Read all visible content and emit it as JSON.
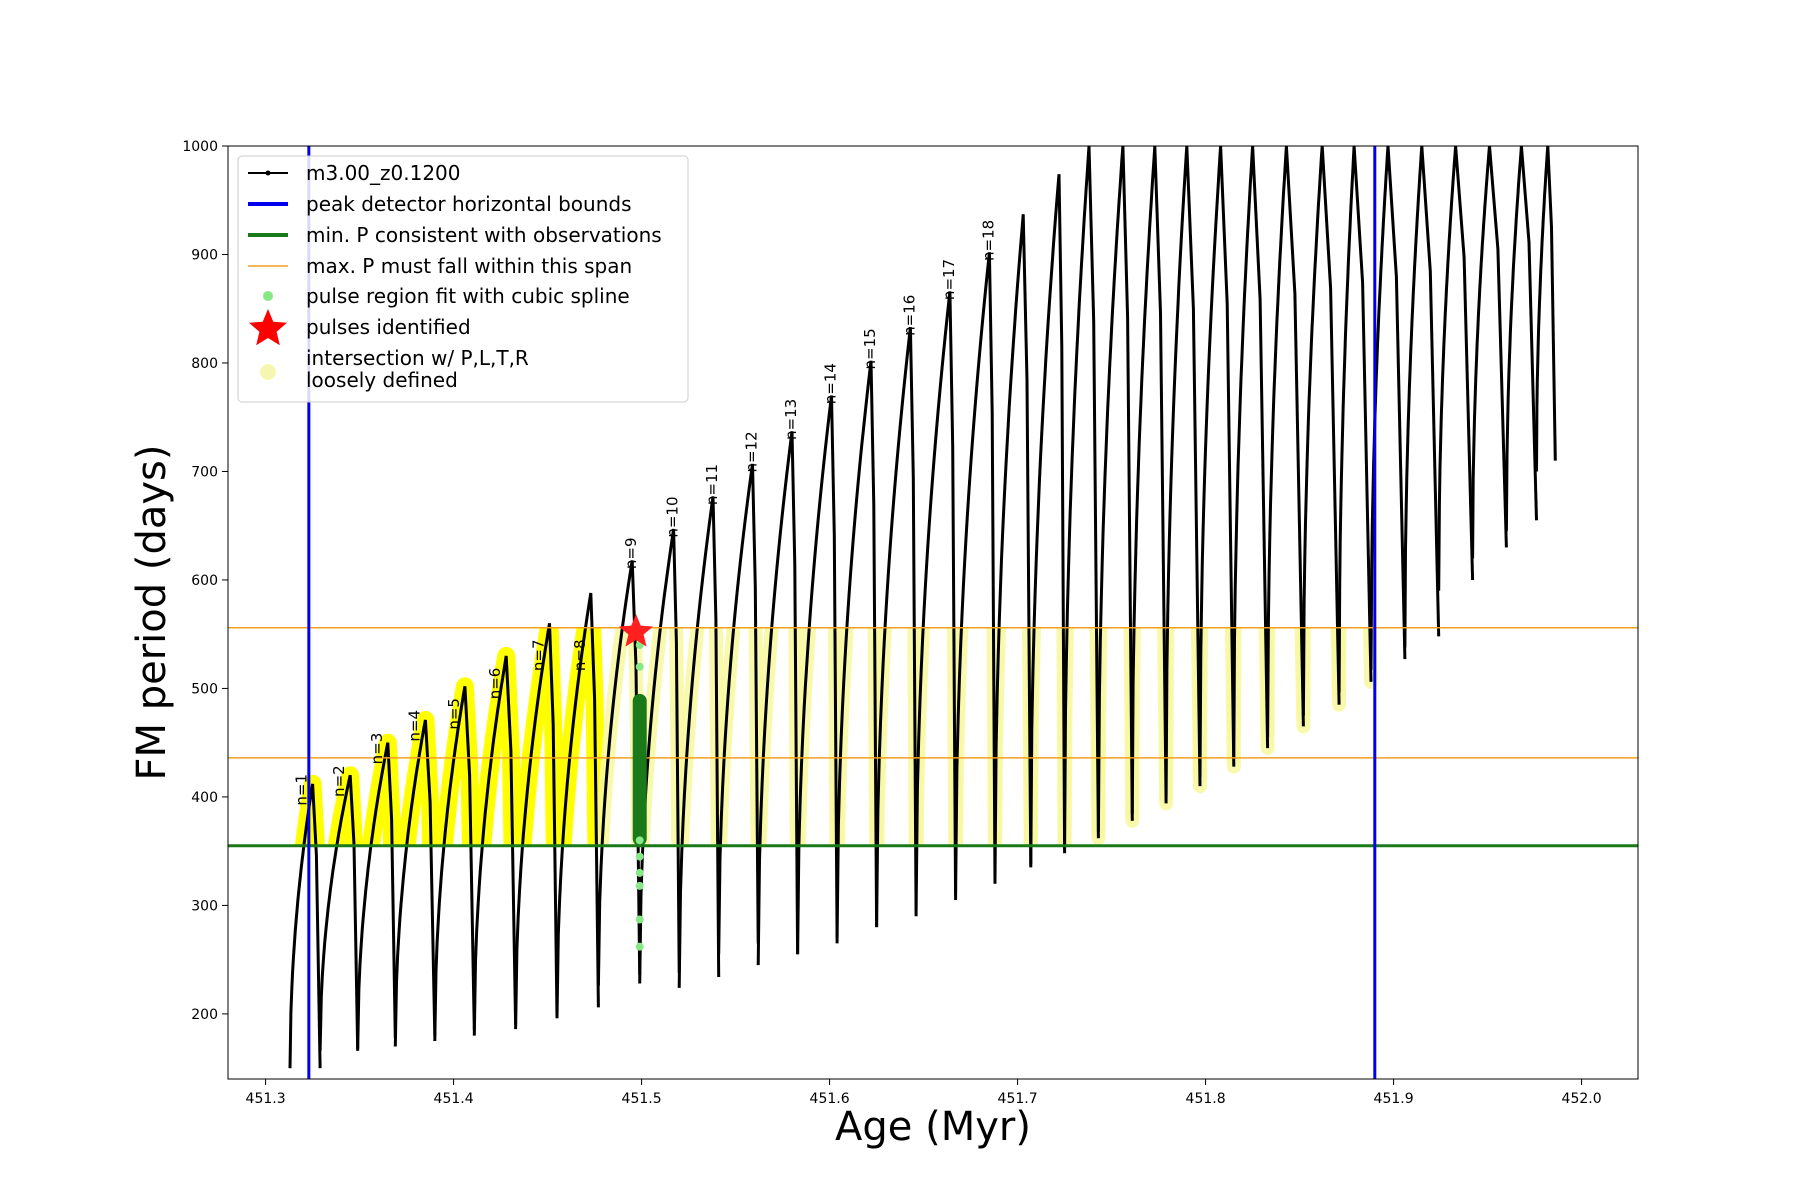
{
  "chart_data": {
    "type": "line",
    "title": "",
    "xlabel": "Age (Myr)",
    "ylabel": "FM period (days)",
    "xlim": [
      451.28,
      452.03
    ],
    "ylim": [
      140,
      1000
    ],
    "xticks": [
      451.3,
      451.4,
      451.5,
      451.6,
      451.7,
      451.8,
      451.9,
      452.0
    ],
    "xtick_labels": [
      "451.3",
      "451.4",
      "451.5",
      "451.6",
      "451.7",
      "451.8",
      "451.9",
      "452.0"
    ],
    "yticks": [
      200,
      300,
      400,
      500,
      600,
      700,
      800,
      900,
      1000
    ],
    "ytick_labels": [
      "200",
      "300",
      "400",
      "500",
      "600",
      "700",
      "800",
      "900",
      "1000"
    ],
    "grid": false,
    "legend_position": "top-left",
    "legend": [
      {
        "label": "m3.00_z0.1200",
        "marker": "line-dot",
        "color": "#000000"
      },
      {
        "label": "peak detector horizontal bounds",
        "marker": "line",
        "color": "#0000ee"
      },
      {
        "label": "min. P consistent with observations",
        "marker": "line",
        "color": "#1a7a1a"
      },
      {
        "label": "max. P must fall within this span",
        "marker": "thin-line",
        "color": "#f0a020"
      },
      {
        "label": "pulse region fit with cubic spline",
        "marker": "dot",
        "color": "#88e888"
      },
      {
        "label": "pulses identified",
        "marker": "star",
        "color": "#ff0000"
      },
      {
        "label": "intersection w/ P,L,T,R",
        "label2": "loosely defined",
        "marker": "circle",
        "color": "#f6f6b0"
      }
    ],
    "vertical_lines": [
      {
        "x": 451.323,
        "color": "#0000ee"
      },
      {
        "x": 451.89,
        "color": "#0000ee"
      }
    ],
    "horizontal_lines": [
      {
        "y": 355,
        "color": "#1a7a1a",
        "width": 3
      },
      {
        "y": 436,
        "color": "#f0a020",
        "width": 1.5
      },
      {
        "y": 556,
        "color": "#f0a020",
        "width": 1.5
      }
    ],
    "pulses": [
      {
        "start": 451.313,
        "peak": 451.325,
        "end": 451.329,
        "min": 150,
        "max": 412,
        "label": "n=1"
      },
      {
        "start": 451.329,
        "peak": 451.345,
        "end": 451.349,
        "min": 166,
        "max": 420,
        "label": "n=2"
      },
      {
        "start": 451.349,
        "peak": 451.365,
        "end": 451.369,
        "min": 168,
        "max": 450,
        "label": "n=3"
      },
      {
        "start": 451.369,
        "peak": 451.385,
        "end": 451.39,
        "min": 170,
        "max": 471,
        "label": "n=4"
      },
      {
        "start": 451.39,
        "peak": 451.406,
        "end": 451.411,
        "min": 175,
        "max": 502,
        "label": "n=5"
      },
      {
        "start": 451.411,
        "peak": 451.428,
        "end": 451.433,
        "min": 180,
        "max": 530,
        "label": "n=6"
      },
      {
        "start": 451.433,
        "peak": 451.451,
        "end": 451.455,
        "min": 186,
        "max": 560,
        "label": "n=7"
      },
      {
        "start": 451.455,
        "peak": 451.473,
        "end": 451.477,
        "min": 196,
        "max": 588,
        "label": "n=8"
      },
      {
        "start": 451.477,
        "peak": 451.495,
        "end": 451.499,
        "min": 226,
        "max": 618,
        "label": "n=9"
      },
      {
        "start": 451.499,
        "peak": 451.517,
        "end": 451.52,
        "min": 228,
        "max": 647,
        "label": "n=10"
      },
      {
        "start": 451.52,
        "peak": 451.538,
        "end": 451.541,
        "min": 224,
        "max": 677,
        "label": "n=11"
      },
      {
        "start": 451.541,
        "peak": 451.559,
        "end": 451.562,
        "min": 255,
        "max": 707,
        "label": "n=12"
      },
      {
        "start": 451.562,
        "peak": 451.58,
        "end": 451.583,
        "min": 245,
        "max": 737,
        "label": "n=13"
      },
      {
        "start": 451.583,
        "peak": 451.601,
        "end": 451.604,
        "min": 255,
        "max": 770,
        "label": "n=14"
      },
      {
        "start": 451.604,
        "peak": 451.622,
        "end": 451.625,
        "min": 270,
        "max": 802,
        "label": "n=15"
      },
      {
        "start": 451.625,
        "peak": 451.643,
        "end": 451.646,
        "min": 280,
        "max": 833,
        "label": "n=16"
      },
      {
        "start": 451.646,
        "peak": 451.664,
        "end": 451.667,
        "min": 295,
        "max": 866,
        "label": "n=17"
      },
      {
        "start": 451.667,
        "peak": 451.685,
        "end": 451.688,
        "min": 310,
        "max": 902,
        "label": "n=18"
      },
      {
        "start": 451.688,
        "peak": 451.703,
        "end": 451.707,
        "min": 325,
        "max": 937,
        "label": ""
      },
      {
        "start": 451.707,
        "peak": 451.722,
        "end": 451.725,
        "min": 338,
        "max": 974,
        "label": ""
      },
      {
        "start": 451.725,
        "peak": 451.738,
        "end": 451.743,
        "min": 352,
        "max": 1000,
        "label": ""
      },
      {
        "start": 451.743,
        "peak": 451.756,
        "end": 451.761,
        "min": 368,
        "max": 1000,
        "label": ""
      },
      {
        "start": 451.761,
        "peak": 451.773,
        "end": 451.779,
        "min": 384,
        "max": 1000,
        "label": ""
      },
      {
        "start": 451.779,
        "peak": 451.79,
        "end": 451.797,
        "min": 400,
        "max": 1000,
        "label": ""
      },
      {
        "start": 451.797,
        "peak": 451.808,
        "end": 451.815,
        "min": 418,
        "max": 1000,
        "label": ""
      },
      {
        "start": 451.815,
        "peak": 451.825,
        "end": 451.833,
        "min": 435,
        "max": 1000,
        "label": ""
      },
      {
        "start": 451.833,
        "peak": 451.843,
        "end": 451.852,
        "min": 455,
        "max": 1000,
        "label": ""
      },
      {
        "start": 451.852,
        "peak": 451.862,
        "end": 451.871,
        "min": 475,
        "max": 1000,
        "label": ""
      },
      {
        "start": 451.871,
        "peak": 451.879,
        "end": 451.888,
        "min": 496,
        "max": 1000,
        "label": ""
      },
      {
        "start": 451.888,
        "peak": 451.897,
        "end": 451.906,
        "min": 517,
        "max": 1000,
        "label": ""
      },
      {
        "start": 451.906,
        "peak": 451.915,
        "end": 451.924,
        "min": 538,
        "max": 1000,
        "label": ""
      },
      {
        "start": 451.924,
        "peak": 451.933,
        "end": 451.942,
        "min": 590,
        "max": 1000,
        "label": ""
      },
      {
        "start": 451.942,
        "peak": 451.951,
        "end": 451.96,
        "min": 620,
        "max": 1000,
        "label": ""
      },
      {
        "start": 451.96,
        "peak": 451.968,
        "end": 451.976,
        "min": 645,
        "max": 1000,
        "label": ""
      },
      {
        "start": 451.976,
        "peak": 451.982,
        "end": 451.986,
        "min": 700,
        "max": 1000,
        "label": ""
      }
    ],
    "cubic_spline_points": {
      "x": 451.499,
      "y": [
        262,
        287,
        318,
        330,
        345,
        360,
        520,
        540
      ]
    },
    "pulse_fit_region": {
      "x": 451.499,
      "y_min": 355,
      "y_max": 495
    },
    "pulse_identified": {
      "x": 451.497,
      "y": 552
    }
  }
}
